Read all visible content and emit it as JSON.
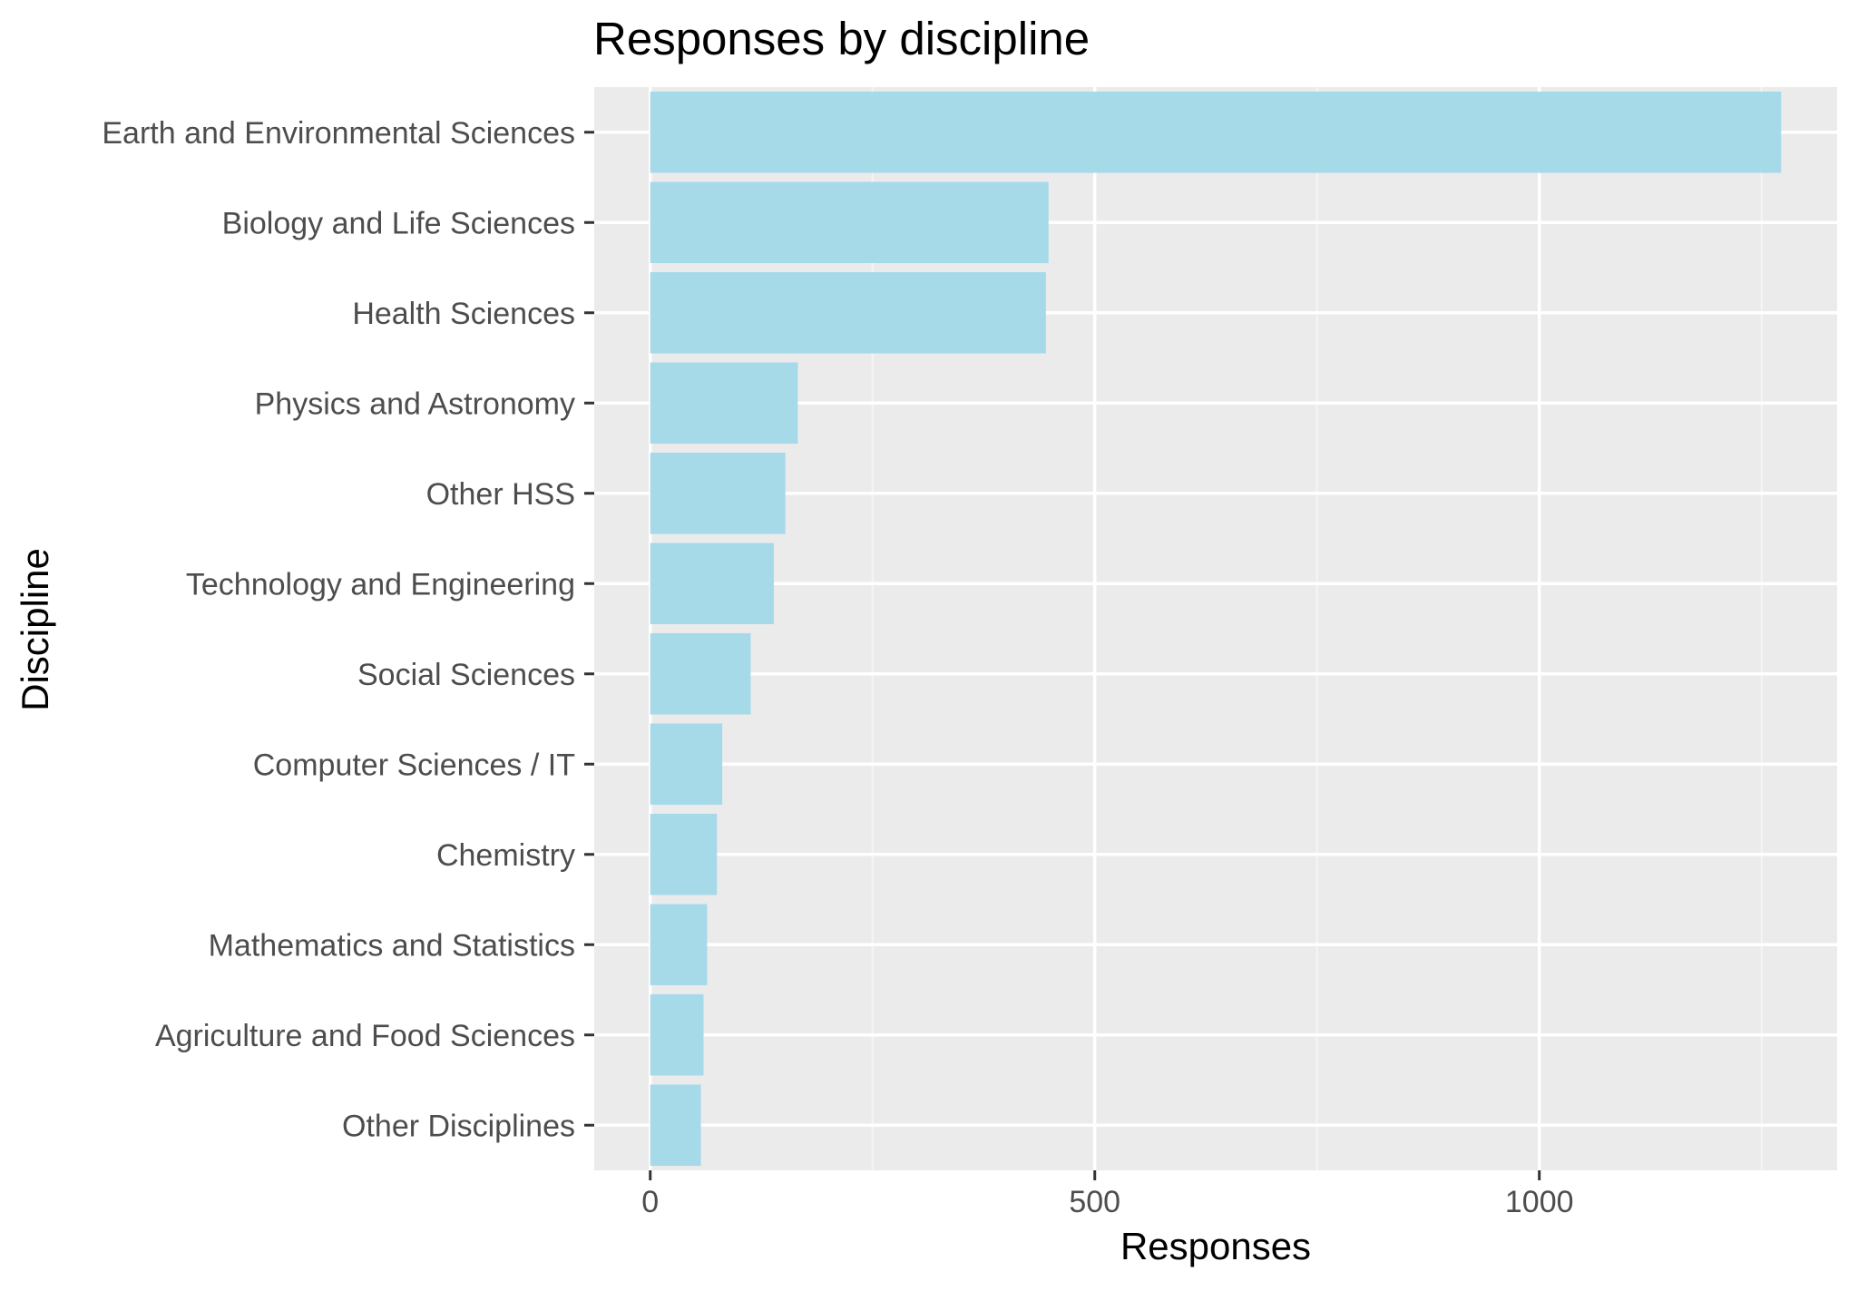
{
  "chart_data": {
    "type": "bar",
    "orientation": "horizontal",
    "title": "Responses by discipline",
    "xlabel": "Responses",
    "ylabel": "Discipline",
    "categories": [
      "Earth and Environmental Sciences",
      "Biology and Life Sciences",
      "Health Sciences",
      "Physics and Astronomy",
      "Other HSS",
      "Technology and Engineering",
      "Social Sciences",
      "Computer Sciences / IT",
      "Chemistry",
      "Mathematics and Statistics",
      "Agriculture and Food Sciences",
      "Other Disciplines"
    ],
    "values": [
      1272,
      448,
      445,
      166,
      152,
      139,
      113,
      81,
      75,
      64,
      60,
      57
    ],
    "xlim": [
      -63,
      1335
    ],
    "xticks": [
      0,
      500,
      1000
    ],
    "xtick_labels": [
      "0",
      "500",
      "1000"
    ],
    "grid": true,
    "legend": "none",
    "colors": {
      "bar": "#a6dae9",
      "panel": "#ebebeb",
      "grid_major": "#ffffff",
      "grid_minor": "#f5f5f5",
      "tick": "#333333"
    }
  }
}
